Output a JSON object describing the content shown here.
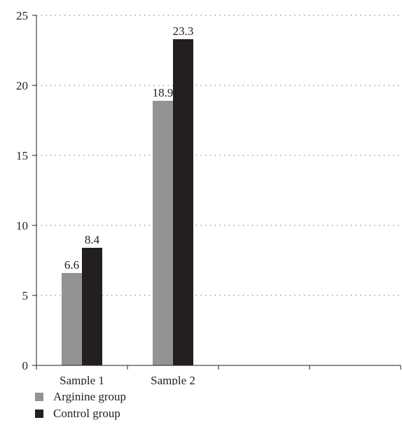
{
  "chart_data": {
    "type": "bar",
    "categories": [
      "Sample 1",
      "Sample 2",
      "",
      ""
    ],
    "series": [
      {
        "name": "Arginine group",
        "values": [
          6.6,
          18.9,
          null,
          null
        ],
        "color": "#939393"
      },
      {
        "name": "Control group",
        "values": [
          8.4,
          23.3,
          null,
          null
        ],
        "color": "#231f20"
      }
    ],
    "data_labels": [
      [
        "6.6",
        "18.9"
      ],
      [
        "8.4",
        "23.3"
      ]
    ],
    "ylim": [
      0,
      25
    ],
    "yticks": [
      "0",
      "5",
      "10",
      "15",
      "20",
      "25"
    ],
    "title": "",
    "xlabel": "",
    "ylabel": "",
    "grid": "horizontal-dotted",
    "legend_position": "bottom-left"
  }
}
